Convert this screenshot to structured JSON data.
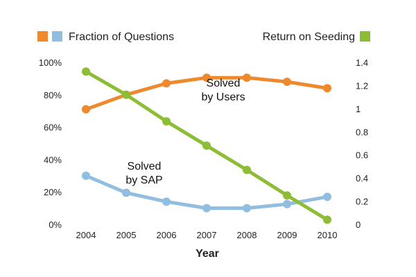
{
  "chart_data": {
    "type": "line",
    "x": [
      2004,
      2005,
      2006,
      2007,
      2008,
      2009,
      2010
    ],
    "xlabel": "Year",
    "left_axis": {
      "label": "Fraction of Questions",
      "ticks": [
        "0%",
        "20%",
        "40%",
        "60%",
        "80%",
        "100%"
      ],
      "ylim": [
        0,
        100
      ]
    },
    "right_axis": {
      "label": "Return on Seeding",
      "ticks": [
        "0",
        "0.2",
        "0.4",
        "0.6",
        "0.8",
        "1",
        "1.2",
        "1.4"
      ],
      "ylim": [
        0,
        1.4
      ]
    },
    "series": [
      {
        "key": "users",
        "axis": "left",
        "color": "#ee8a2d",
        "values": [
          71,
          80,
          87,
          90.5,
          90.5,
          88,
          84
        ]
      },
      {
        "key": "sap",
        "axis": "left",
        "color": "#91bde0",
        "values": [
          30,
          19.5,
          14,
          10,
          10,
          12.5,
          17
        ]
      },
      {
        "key": "seeding",
        "axis": "right",
        "color": "#8dbd34",
        "values": [
          1.32,
          1.12,
          0.89,
          0.68,
          0.47,
          0.25,
          0.04
        ]
      }
    ],
    "annotations": [
      {
        "line1": "Solved",
        "line2": "by Users"
      },
      {
        "line1": "Solved",
        "line2": "by SAP"
      }
    ],
    "legend": {
      "left_colors": [
        "#ee8a2d",
        "#91bde0"
      ],
      "right_color": "#8dbd34"
    },
    "grid": false
  }
}
